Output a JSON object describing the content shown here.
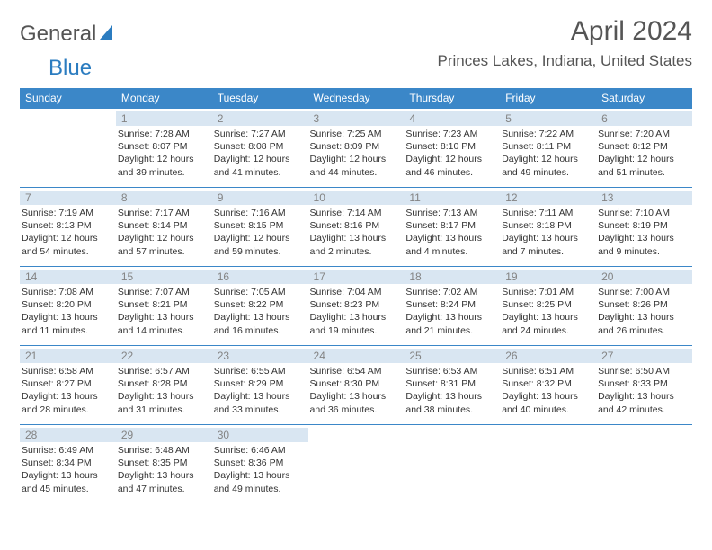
{
  "logo": {
    "textA": "General",
    "textB": "Blue"
  },
  "title": "April 2024",
  "location": "Princes Lakes, Indiana, United States",
  "colors": {
    "header_bg": "#3b87c8",
    "header_text": "#ffffff",
    "daynum_bg": "#d9e6f2",
    "daynum_text": "#838383",
    "rule": "#3b87c8",
    "body_text": "#333333"
  },
  "weekdays": [
    "Sunday",
    "Monday",
    "Tuesday",
    "Wednesday",
    "Thursday",
    "Friday",
    "Saturday"
  ],
  "weeks": [
    [
      null,
      {
        "n": "1",
        "sr": "7:28 AM",
        "ss": "8:07 PM",
        "dl": "12 hours and 39 minutes."
      },
      {
        "n": "2",
        "sr": "7:27 AM",
        "ss": "8:08 PM",
        "dl": "12 hours and 41 minutes."
      },
      {
        "n": "3",
        "sr": "7:25 AM",
        "ss": "8:09 PM",
        "dl": "12 hours and 44 minutes."
      },
      {
        "n": "4",
        "sr": "7:23 AM",
        "ss": "8:10 PM",
        "dl": "12 hours and 46 minutes."
      },
      {
        "n": "5",
        "sr": "7:22 AM",
        "ss": "8:11 PM",
        "dl": "12 hours and 49 minutes."
      },
      {
        "n": "6",
        "sr": "7:20 AM",
        "ss": "8:12 PM",
        "dl": "12 hours and 51 minutes."
      }
    ],
    [
      {
        "n": "7",
        "sr": "7:19 AM",
        "ss": "8:13 PM",
        "dl": "12 hours and 54 minutes."
      },
      {
        "n": "8",
        "sr": "7:17 AM",
        "ss": "8:14 PM",
        "dl": "12 hours and 57 minutes."
      },
      {
        "n": "9",
        "sr": "7:16 AM",
        "ss": "8:15 PM",
        "dl": "12 hours and 59 minutes."
      },
      {
        "n": "10",
        "sr": "7:14 AM",
        "ss": "8:16 PM",
        "dl": "13 hours and 2 minutes."
      },
      {
        "n": "11",
        "sr": "7:13 AM",
        "ss": "8:17 PM",
        "dl": "13 hours and 4 minutes."
      },
      {
        "n": "12",
        "sr": "7:11 AM",
        "ss": "8:18 PM",
        "dl": "13 hours and 7 minutes."
      },
      {
        "n": "13",
        "sr": "7:10 AM",
        "ss": "8:19 PM",
        "dl": "13 hours and 9 minutes."
      }
    ],
    [
      {
        "n": "14",
        "sr": "7:08 AM",
        "ss": "8:20 PM",
        "dl": "13 hours and 11 minutes."
      },
      {
        "n": "15",
        "sr": "7:07 AM",
        "ss": "8:21 PM",
        "dl": "13 hours and 14 minutes."
      },
      {
        "n": "16",
        "sr": "7:05 AM",
        "ss": "8:22 PM",
        "dl": "13 hours and 16 minutes."
      },
      {
        "n": "17",
        "sr": "7:04 AM",
        "ss": "8:23 PM",
        "dl": "13 hours and 19 minutes."
      },
      {
        "n": "18",
        "sr": "7:02 AM",
        "ss": "8:24 PM",
        "dl": "13 hours and 21 minutes."
      },
      {
        "n": "19",
        "sr": "7:01 AM",
        "ss": "8:25 PM",
        "dl": "13 hours and 24 minutes."
      },
      {
        "n": "20",
        "sr": "7:00 AM",
        "ss": "8:26 PM",
        "dl": "13 hours and 26 minutes."
      }
    ],
    [
      {
        "n": "21",
        "sr": "6:58 AM",
        "ss": "8:27 PM",
        "dl": "13 hours and 28 minutes."
      },
      {
        "n": "22",
        "sr": "6:57 AM",
        "ss": "8:28 PM",
        "dl": "13 hours and 31 minutes."
      },
      {
        "n": "23",
        "sr": "6:55 AM",
        "ss": "8:29 PM",
        "dl": "13 hours and 33 minutes."
      },
      {
        "n": "24",
        "sr": "6:54 AM",
        "ss": "8:30 PM",
        "dl": "13 hours and 36 minutes."
      },
      {
        "n": "25",
        "sr": "6:53 AM",
        "ss": "8:31 PM",
        "dl": "13 hours and 38 minutes."
      },
      {
        "n": "26",
        "sr": "6:51 AM",
        "ss": "8:32 PM",
        "dl": "13 hours and 40 minutes."
      },
      {
        "n": "27",
        "sr": "6:50 AM",
        "ss": "8:33 PM",
        "dl": "13 hours and 42 minutes."
      }
    ],
    [
      {
        "n": "28",
        "sr": "6:49 AM",
        "ss": "8:34 PM",
        "dl": "13 hours and 45 minutes."
      },
      {
        "n": "29",
        "sr": "6:48 AM",
        "ss": "8:35 PM",
        "dl": "13 hours and 47 minutes."
      },
      {
        "n": "30",
        "sr": "6:46 AM",
        "ss": "8:36 PM",
        "dl": "13 hours and 49 minutes."
      },
      null,
      null,
      null,
      null
    ]
  ],
  "labels": {
    "sunrise": "Sunrise:",
    "sunset": "Sunset:",
    "daylight": "Daylight:"
  }
}
